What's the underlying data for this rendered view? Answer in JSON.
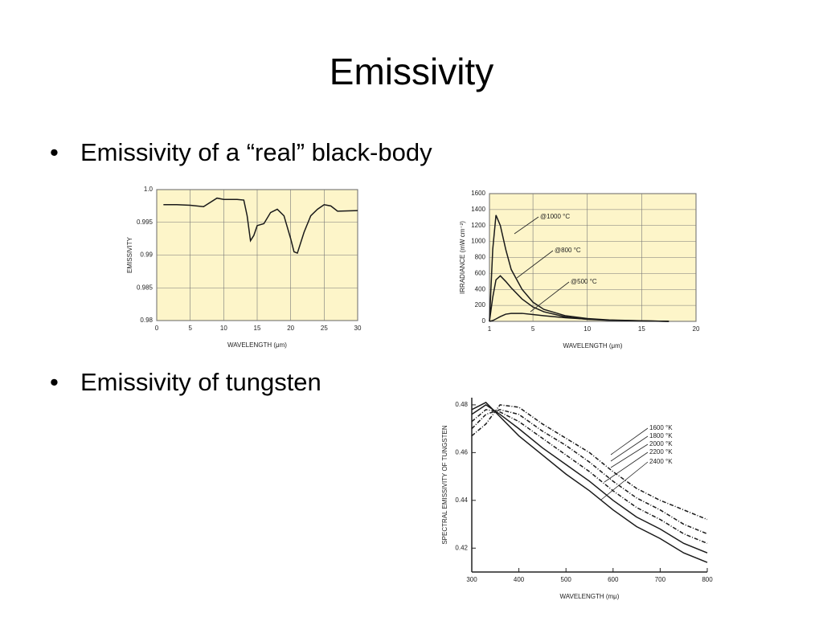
{
  "slide": {
    "title": "Emissivity",
    "bullets": [
      "Emissivity of a “real” black-body",
      "Emissivity of tungsten"
    ]
  },
  "chart_data": [
    {
      "type": "line",
      "x_label": "WAVELENGTH (μm)",
      "y_label": "EMISSIVITY",
      "background": "#fdf5c9",
      "grid": true,
      "color": "#1a1a1a",
      "x": [
        1,
        3,
        5,
        7,
        9,
        10,
        12,
        13,
        13.5,
        14,
        14.5,
        15,
        16,
        17,
        18,
        19,
        20,
        20.5,
        21,
        22,
        23,
        24,
        25,
        26,
        27,
        30
      ],
      "values": [
        0.9977,
        0.9977,
        0.9976,
        0.9974,
        0.9987,
        0.9985,
        0.9985,
        0.9984,
        0.996,
        0.9922,
        0.993,
        0.9945,
        0.9948,
        0.9965,
        0.997,
        0.996,
        0.9925,
        0.9905,
        0.9903,
        0.9935,
        0.996,
        0.997,
        0.9977,
        0.9975,
        0.9967,
        0.9968
      ],
      "xlim": [
        0,
        30
      ],
      "xticks": [
        0,
        5,
        10,
        15,
        20,
        25,
        30
      ],
      "ylim": [
        0.98,
        1
      ],
      "yticks": [
        0.98,
        0.985,
        0.99,
        0.995,
        {
          "value": 1,
          "label": "1.0"
        }
      ]
    },
    {
      "type": "line",
      "x_label": "WAVELENGTH (μm)",
      "y_label": "IRRADIANCE (mW cm⁻²)",
      "background": "#fdf5c9",
      "grid": true,
      "x": [
        1,
        1.3,
        1.6,
        2,
        2.5,
        3,
        4,
        5,
        6,
        8,
        10,
        12,
        15,
        17.5
      ],
      "series": [
        {
          "name": "@1000 °C",
          "color": "#1a1a1a",
          "values": [
            0,
            900,
            1330,
            1200,
            900,
            650,
            400,
            240,
            150,
            70,
            35,
            18,
            8,
            0
          ]
        },
        {
          "name": "@800 °C",
          "color": "#1a1a1a",
          "values": [
            0,
            300,
            520,
            570,
            500,
            420,
            280,
            180,
            120,
            55,
            25,
            12,
            5,
            0
          ]
        },
        {
          "name": "@500 °C",
          "color": "#1a1a1a",
          "values": [
            0,
            10,
            30,
            60,
            90,
            100,
            100,
            85,
            70,
            45,
            28,
            15,
            6,
            0
          ]
        }
      ],
      "xlim": [
        1,
        20
      ],
      "xticks": [
        1,
        5,
        10,
        15,
        20
      ],
      "ylim": [
        0,
        1600
      ],
      "yticks": [
        0,
        200,
        400,
        600,
        800,
        1000,
        1200,
        1400,
        1600
      ]
    },
    {
      "type": "line",
      "x_label": "WAVELENGTH (mμ)",
      "y_label": "SPECTRAL EMISSIVITY OF TUNGSTEN",
      "background": "#ffffff",
      "grid": false,
      "x": [
        300,
        330,
        360,
        400,
        450,
        500,
        550,
        600,
        650,
        700,
        750,
        800
      ],
      "series": [
        {
          "name": "1600 °K",
          "color": "#1a1a1a",
          "style": "dashed",
          "values": [
            0.467,
            0.472,
            0.48,
            0.479,
            0.472,
            0.466,
            0.46,
            0.452,
            0.445,
            0.44,
            0.436,
            0.432
          ]
        },
        {
          "name": "1800 °K",
          "color": "#1a1a1a",
          "style": "dashed",
          "values": [
            0.47,
            0.476,
            0.478,
            0.476,
            0.469,
            0.463,
            0.456,
            0.448,
            0.441,
            0.436,
            0.43,
            0.426
          ]
        },
        {
          "name": "2000 °K",
          "color": "#1a1a1a",
          "style": "dashed",
          "values": [
            0.473,
            0.478,
            0.477,
            0.473,
            0.466,
            0.459,
            0.452,
            0.444,
            0.437,
            0.432,
            0.426,
            0.422
          ]
        },
        {
          "name": "2200 °K",
          "color": "#1a1a1a",
          "style": "solid",
          "values": [
            0.476,
            0.48,
            0.476,
            0.47,
            0.462,
            0.455,
            0.448,
            0.44,
            0.433,
            0.428,
            0.422,
            0.418
          ]
        },
        {
          "name": "2400 °K",
          "color": "#1a1a1a",
          "style": "solid",
          "values": [
            0.478,
            0.481,
            0.475,
            0.467,
            0.459,
            0.451,
            0.444,
            0.436,
            0.429,
            0.424,
            0.418,
            0.414
          ]
        }
      ],
      "xlim": [
        300,
        800
      ],
      "xticks": [
        300,
        400,
        500,
        600,
        700,
        800
      ],
      "ylim": [
        0.41,
        0.483
      ],
      "yticks": [
        0.42,
        0.44,
        0.46,
        0.48
      ]
    }
  ]
}
